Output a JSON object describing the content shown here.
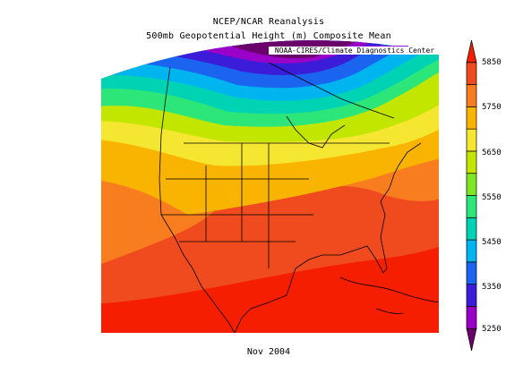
{
  "title": "NCEP/NCAR Reanalysis",
  "subtitle": "500mb Geopotential Height (m) Composite Mean",
  "credit": "NOAA-CIRES/Climate Diagnostics Center",
  "date": "Nov 2004",
  "colorbar": {
    "labels": [
      "5850",
      "5750",
      "5650",
      "5550",
      "5450",
      "5350",
      "5250"
    ],
    "bins": [
      {
        "color": "#6a006a"
      },
      {
        "color": "#9b00c8"
      },
      {
        "color": "#3b1dd9"
      },
      {
        "color": "#1a64f0"
      },
      {
        "color": "#00b4f0"
      },
      {
        "color": "#00d2b4"
      },
      {
        "color": "#2de67a"
      },
      {
        "color": "#7fe626"
      },
      {
        "color": "#c3e600"
      },
      {
        "color": "#f5e632"
      },
      {
        "color": "#f8b400"
      },
      {
        "color": "#f87d1e"
      },
      {
        "color": "#f04b1e"
      },
      {
        "color": "#f51e00"
      }
    ]
  }
}
